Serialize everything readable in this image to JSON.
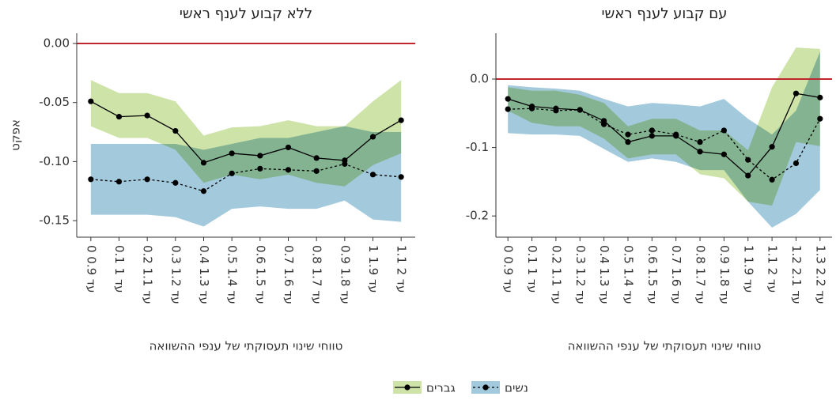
{
  "chart_data": [
    {
      "type": "line",
      "title": "ללא קבוע לענף ראשי",
      "ylabel": "אפקט",
      "xlabel": "טווחי שינוי תעסוקתי של ענפי ההשוואה",
      "categories": [
        "0 עד 0.9",
        "0.1 עד 1",
        "0.2 עד 1.1",
        "0.3 עד 1.2",
        "0.4 עד 1.3",
        "0.5 עד 1.4",
        "0.6 עד 1.5",
        "0.7 עד 1.6",
        "0.8 עד 1.7",
        "0.9 עד 1.8",
        "1 עד 1.9",
        "1.1 עד 2"
      ],
      "ylim": [
        -0.164,
        0.0087
      ],
      "yticks": [
        {
          "value": 0,
          "label": "0.00"
        },
        -0.05,
        {
          "value": -0.1,
          "label": "-0.10"
        },
        -0.15
      ],
      "reference_line": {
        "value": 0,
        "color": "#c0262d"
      },
      "series": [
        {
          "name": "גברים",
          "color": "#000000",
          "band_color": "#cde3a8",
          "dash": false,
          "values": [
            -0.049,
            -0.062,
            -0.061,
            -0.074,
            -0.101,
            -0.093,
            -0.095,
            -0.088,
            -0.097,
            -0.099,
            -0.079,
            -0.065
          ],
          "upper": [
            -0.031,
            -0.042,
            -0.042,
            -0.049,
            -0.078,
            -0.071,
            -0.07,
            -0.065,
            -0.07,
            -0.07,
            -0.049,
            -0.031
          ],
          "lower": [
            -0.07,
            -0.08,
            -0.08,
            -0.09,
            -0.118,
            -0.111,
            -0.115,
            -0.111,
            -0.118,
            -0.121,
            -0.103,
            -0.093
          ]
        },
        {
          "name": "נשים",
          "color": "#000000",
          "band_color": "#a3c9dc",
          "dash": true,
          "values": [
            -0.115,
            -0.117,
            -0.115,
            -0.118,
            -0.125,
            -0.11,
            -0.106,
            -0.107,
            -0.108,
            -0.102,
            -0.111,
            -0.113
          ],
          "upper": [
            -0.085,
            -0.085,
            -0.085,
            -0.085,
            -0.09,
            -0.085,
            -0.08,
            -0.08,
            -0.075,
            -0.07,
            -0.075,
            -0.075
          ],
          "lower": [
            -0.145,
            -0.145,
            -0.145,
            -0.147,
            -0.155,
            -0.14,
            -0.138,
            -0.14,
            -0.14,
            -0.133,
            -0.149,
            -0.151
          ]
        }
      ]
    },
    {
      "type": "line",
      "title": "עם קבוע לענף ראשי",
      "xlabel": "טווחי שינוי תעסוקתי של ענפי ההשוואה",
      "categories": [
        "0 עד 0.9",
        "0.1 עד 1",
        "0.2 עד 1.1",
        "0.3 עד 1.2",
        "0.4 עד 1.3",
        "0.5 עד 1.4",
        "0.6 עד 1.5",
        "0.7 עד 1.6",
        "0.8 עד 1.7",
        "0.9 עד 1.8",
        "1 עד 1.9",
        "1.1 עד 2",
        "1.2 עד 2.1",
        "1.3 עד 2.2"
      ],
      "ylim": [
        -0.231,
        0.067
      ],
      "yticks": [
        {
          "value": 0,
          "label": "0.0"
        },
        -0.1,
        -0.2
      ],
      "reference_line": {
        "value": 0,
        "color": "#c0262d"
      },
      "series": [
        {
          "color": "#000000",
          "band_color": "#cde3a8",
          "dash": false,
          "values": [
            -0.029,
            -0.04,
            -0.043,
            -0.045,
            -0.061,
            -0.092,
            -0.083,
            -0.083,
            -0.106,
            -0.11,
            -0.141,
            -0.099,
            -0.021,
            -0.027
          ],
          "upper": [
            -0.012,
            -0.017,
            -0.017,
            -0.023,
            -0.035,
            -0.069,
            -0.058,
            -0.058,
            -0.075,
            -0.075,
            -0.104,
            -0.012,
            0.046,
            0.044
          ],
          "lower": [
            -0.046,
            -0.064,
            -0.069,
            -0.069,
            -0.087,
            -0.116,
            -0.11,
            -0.11,
            -0.139,
            -0.145,
            -0.179,
            -0.185,
            -0.092,
            -0.098
          ]
        },
        {
          "color": "#000000",
          "band_color": "#a3c9dc",
          "dash": true,
          "values": [
            -0.044,
            -0.043,
            -0.046,
            -0.045,
            -0.066,
            -0.081,
            -0.075,
            -0.081,
            -0.092,
            -0.075,
            -0.118,
            -0.147,
            -0.123,
            -0.058
          ],
          "upper": [
            -0.009,
            -0.012,
            -0.014,
            -0.017,
            -0.029,
            -0.04,
            -0.035,
            -0.037,
            -0.04,
            -0.029,
            -0.058,
            -0.081,
            -0.046,
            0.04
          ],
          "lower": [
            -0.079,
            -0.081,
            -0.081,
            -0.083,
            -0.102,
            -0.121,
            -0.116,
            -0.121,
            -0.133,
            -0.133,
            -0.179,
            -0.217,
            -0.197,
            -0.162
          ]
        }
      ]
    }
  ]
}
